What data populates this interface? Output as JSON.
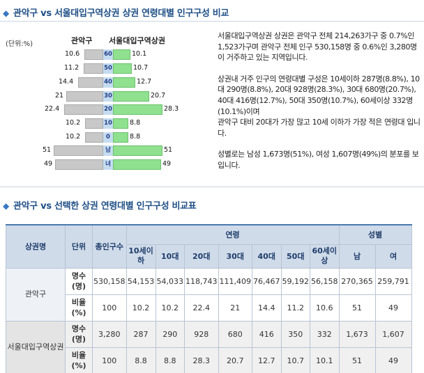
{
  "section1": {
    "title": "관악구 vs 서울대입구역상권 상권 연령대별 인구구성 비교",
    "unit": "(단위:%)",
    "left_header": "관악구",
    "right_header": "서울대입구역상권"
  },
  "pyramid": {
    "rows": [
      {
        "age": "60",
        "left": "10.6",
        "right": "10.1",
        "lv": 10.6,
        "rv": 10.1
      },
      {
        "age": "50",
        "left": "11.2",
        "right": "10.7",
        "lv": 11.2,
        "rv": 10.7
      },
      {
        "age": "40",
        "left": "14.4",
        "right": "12.7",
        "lv": 14.4,
        "rv": 12.7
      },
      {
        "age": "30",
        "left": "21",
        "right": "20.7",
        "lv": 21,
        "rv": 20.7
      },
      {
        "age": "20",
        "left": "22.4",
        "right": "28.3",
        "lv": 22.4,
        "rv": 28.3
      },
      {
        "age": "10",
        "left": "10.2",
        "right": "8.8",
        "lv": 10.2,
        "rv": 8.8
      },
      {
        "age": "0",
        "left": "10.2",
        "right": "8.8",
        "lv": 10.2,
        "rv": 8.8
      },
      {
        "age": "남",
        "left": "51",
        "right": "51",
        "lv": 51,
        "rv": 51
      },
      {
        "age": "녀",
        "left": "49",
        "right": "49",
        "lv": 49,
        "rv": 49
      }
    ]
  },
  "desc": {
    "p1": "서울대입구역상권 상권은 관악구 전체 214,263가구 중 0.7%인 1,523가구며 관악구 전체 인구 530,158명 중 0.6%인 3,280명이 거주하고 있는 지역입니다.",
    "p2a": "상권내 거주 인구의 연령대별 구성은 10세이하 287명(8.8%), 10대 290명(8.8%), 20대 928명(28.3%), 30대 680명(20.7%), 40대 416명(12.7%), 50대 350명(10.7%), 60세이상 332명(10.1%)이며",
    "p2b": "관악구 대비 20대가 가장 많고 10세 이하가 가장 적은 연령대 입니다.",
    "p3": "성별로는 남성 1,673명(51%), 여성 1,607명(49%)의 분포를 보입니다."
  },
  "section2": {
    "title": "관악구 vs 선택한 상권 연령대별 인구구성 비교표"
  },
  "table": {
    "h_area": "상권명",
    "h_unit": "단위",
    "h_total": "총인구수",
    "h_age": "연령",
    "h_sex": "성별",
    "ages": [
      "10세이하",
      "10대",
      "20대",
      "30대",
      "40대",
      "50대",
      "60세이상"
    ],
    "sexes": [
      "남",
      "여"
    ],
    "groups": [
      {
        "name": "관악구",
        "count_label": "명수(명)",
        "ratio_label": "비율(%)",
        "count": [
          "530,158",
          "54,153",
          "54,033",
          "118,743",
          "111,409",
          "76,467",
          "59,192",
          "56,158",
          "270,365",
          "259,791"
        ],
        "ratio": [
          "100",
          "10.2",
          "10.2",
          "22.4",
          "21",
          "14.4",
          "11.2",
          "10.6",
          "51",
          "49"
        ]
      },
      {
        "name": "서울대입구역상권",
        "count_label": "명수(명)",
        "ratio_label": "비율(%)",
        "count": [
          "3,280",
          "287",
          "290",
          "928",
          "680",
          "416",
          "350",
          "332",
          "1,673",
          "1,607"
        ],
        "ratio": [
          "100",
          "8.8",
          "8.8",
          "28.3",
          "20.7",
          "12.7",
          "10.7",
          "10.1",
          "51",
          "49"
        ]
      }
    ]
  },
  "colors": {
    "title": "#1f4f86",
    "bar_left": "#c8c8c8",
    "bar_right": "#8fe08f",
    "age_box": "#c5dcf0",
    "table_header": "#cfdbe9"
  }
}
